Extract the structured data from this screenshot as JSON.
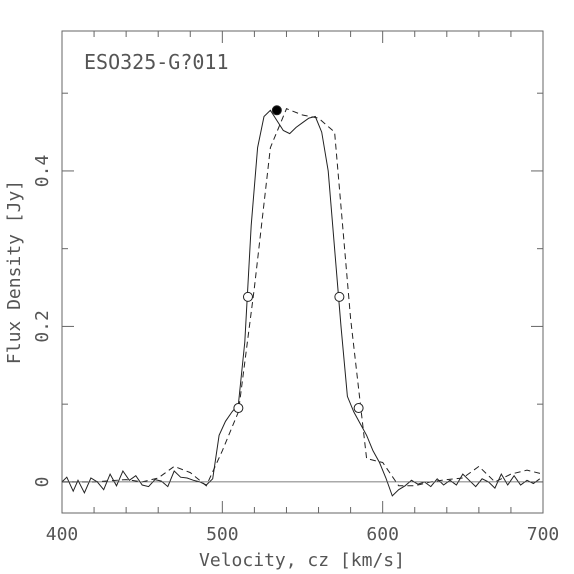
{
  "chart_data": {
    "type": "line",
    "title": "ESO325-G?011",
    "xlabel": "Velocity, cz [km/s]",
    "ylabel": "Flux Density [Jy]",
    "xlim": [
      400,
      700
    ],
    "ylim": [
      -0.04,
      0.58
    ],
    "x_ticks": [
      {
        "value": 400,
        "label": "400"
      },
      {
        "value": 500,
        "label": "500"
      },
      {
        "value": 600,
        "label": "600"
      },
      {
        "value": 700,
        "label": "700"
      }
    ],
    "y_ticks": [
      {
        "value": 0,
        "label": "0"
      },
      {
        "value": 0.2,
        "label": "0.2"
      },
      {
        "value": 0.4,
        "label": "0.4"
      }
    ],
    "grid": false,
    "series": [
      {
        "style": "solid",
        "x": [
          400,
          403,
          407,
          410,
          414,
          418,
          422,
          426,
          430,
          434,
          438,
          442,
          446,
          450,
          454,
          458,
          462,
          466,
          470,
          474,
          478,
          482,
          486,
          490,
          494,
          498,
          502,
          506,
          510,
          514,
          518,
          522,
          526,
          530,
          534,
          538,
          542,
          546,
          550,
          554,
          558,
          562,
          566,
          570,
          574,
          578,
          582,
          586,
          590,
          594,
          598,
          602,
          606,
          610,
          614,
          618,
          622,
          626,
          630,
          634,
          638,
          642,
          646,
          650,
          654,
          658,
          662,
          666,
          670,
          674,
          678,
          682,
          686,
          690,
          694,
          698
        ],
        "y": [
          0.0,
          0.006,
          -0.012,
          0.002,
          -0.014,
          0.005,
          0.0,
          -0.01,
          0.01,
          -0.005,
          0.014,
          0.002,
          0.008,
          -0.004,
          -0.006,
          0.003,
          0.001,
          -0.006,
          0.014,
          0.006,
          0.005,
          0.002,
          0.0,
          -0.004,
          0.004,
          0.06,
          0.078,
          0.09,
          0.1,
          0.18,
          0.33,
          0.43,
          0.47,
          0.478,
          0.465,
          0.452,
          0.448,
          0.456,
          0.462,
          0.468,
          0.47,
          0.45,
          0.4,
          0.3,
          0.2,
          0.11,
          0.09,
          0.075,
          0.06,
          0.04,
          0.025,
          0.005,
          -0.018,
          -0.01,
          -0.005,
          0.002,
          -0.003,
          0.0,
          -0.006,
          0.004,
          -0.004,
          0.002,
          -0.004,
          0.01,
          0.002,
          -0.006,
          0.004,
          0.0,
          -0.008,
          0.01,
          -0.004,
          0.008,
          -0.004,
          0.002,
          -0.002,
          0.004
        ]
      },
      {
        "style": "dashed",
        "x": [
          400,
          420,
          440,
          450,
          460,
          470,
          480,
          490,
          500,
          510,
          520,
          530,
          540,
          550,
          560,
          570,
          580,
          590,
          600,
          610,
          620,
          630,
          640,
          650,
          660,
          670,
          680,
          690,
          700
        ],
        "y": [
          0.0,
          0.0,
          0.003,
          0.0,
          0.005,
          0.02,
          0.012,
          -0.005,
          0.04,
          0.09,
          0.25,
          0.43,
          0.48,
          0.472,
          0.468,
          0.45,
          0.21,
          0.03,
          0.025,
          -0.005,
          -0.005,
          0.0,
          0.003,
          0.005,
          0.02,
          0.0,
          0.01,
          0.015,
          0.01
        ]
      },
      {
        "style": "baseline",
        "x": [
          400,
          700
        ],
        "y": [
          0,
          0
        ]
      }
    ],
    "markers": [
      {
        "style": "filled",
        "x": 534,
        "y": 0.478
      },
      {
        "style": "open",
        "x": 516,
        "y": 0.238
      },
      {
        "style": "open",
        "x": 573,
        "y": 0.238
      },
      {
        "style": "open",
        "x": 510,
        "y": 0.095
      },
      {
        "style": "open",
        "x": 585,
        "y": 0.095
      }
    ],
    "legend": "none"
  }
}
